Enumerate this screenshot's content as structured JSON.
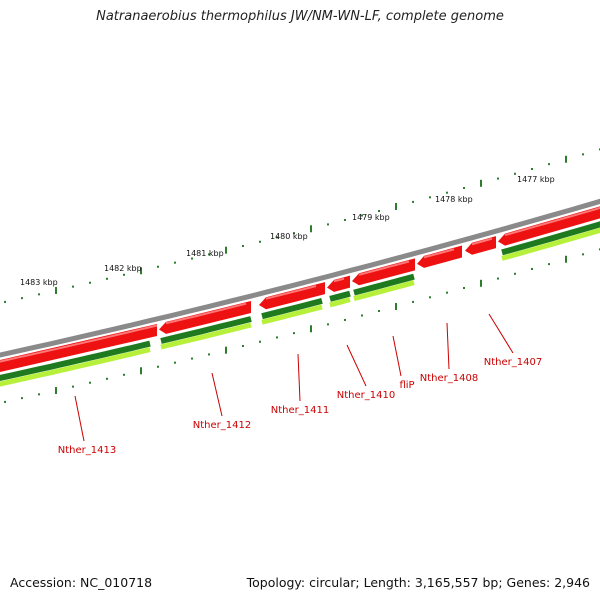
{
  "title": "Natranaerobius thermophilus JW/NM-WN-LF, complete genome",
  "footer": {
    "accession": "Accession: NC_010718",
    "summary": "Topology: circular; Length: 3,165,557 bp; Genes: 2,946"
  },
  "colors": {
    "backbone": "#8a8a8a",
    "forward_cds": "#ee1111",
    "reverse_cds_dark": "#1f7a1f",
    "reverse_cds_light": "#b6f03a",
    "gene_label": "#cc0000",
    "tick_mark": "#2d7d2d"
  },
  "scale_ticks": [
    {
      "label": "1483 kbp"
    },
    {
      "label": "1482 kbp"
    },
    {
      "label": "1481 kbp"
    },
    {
      "label": "1480 kbp"
    },
    {
      "label": "1479 kbp"
    },
    {
      "label": "1478 kbp"
    },
    {
      "label": "1477 kbp"
    }
  ],
  "gene_labels": [
    {
      "label": "Nther_1413"
    },
    {
      "label": "Nther_1412"
    },
    {
      "label": "Nther_1411"
    },
    {
      "label": "Nther_1410"
    },
    {
      "label": "fliP"
    },
    {
      "label": "Nther_1408"
    },
    {
      "label": "Nther_1407"
    }
  ]
}
